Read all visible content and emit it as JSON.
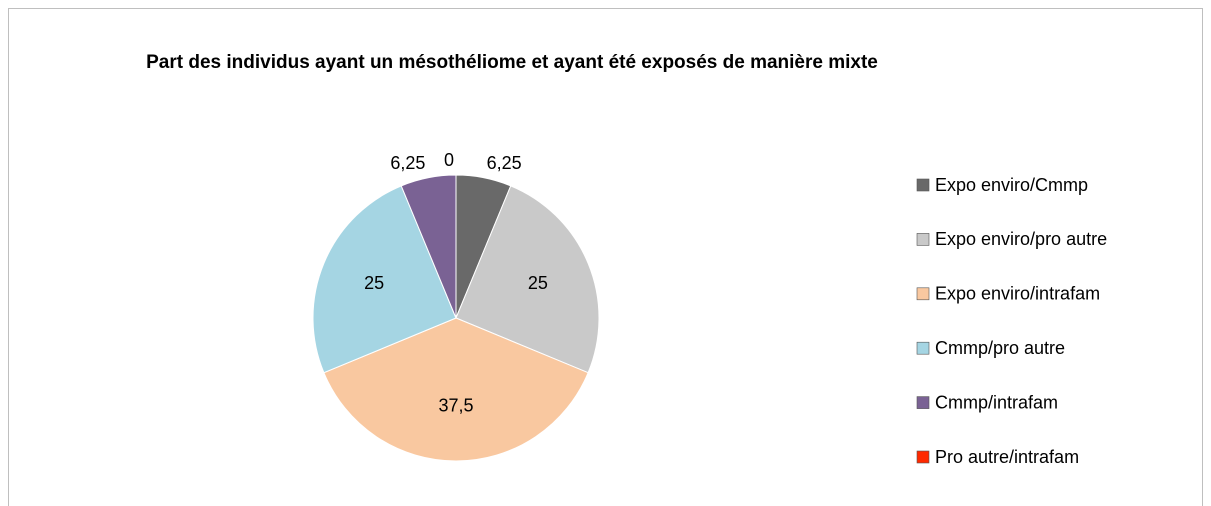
{
  "chart_data": {
    "type": "pie",
    "title": "Part des individus ayant un mésothéliome et ayant été exposés de manière mixte",
    "categories": [
      "Expo enviro/Cmmp",
      "Expo enviro/pro autre",
      "Expo enviro/intrafam",
      "Cmmp/pro autre",
      "Cmmp/intrafam",
      "Pro autre/intrafam"
    ],
    "values": [
      6.25,
      25,
      37.5,
      25,
      6.25,
      0
    ],
    "value_labels": [
      "6,25",
      "25",
      "37,5",
      "25",
      "6,25",
      "0"
    ],
    "colors": [
      "#696969",
      "#c9c9c9",
      "#f9c8a0",
      "#a5d5e3",
      "#7a6294",
      "#ff2a00"
    ],
    "legend": "right"
  }
}
